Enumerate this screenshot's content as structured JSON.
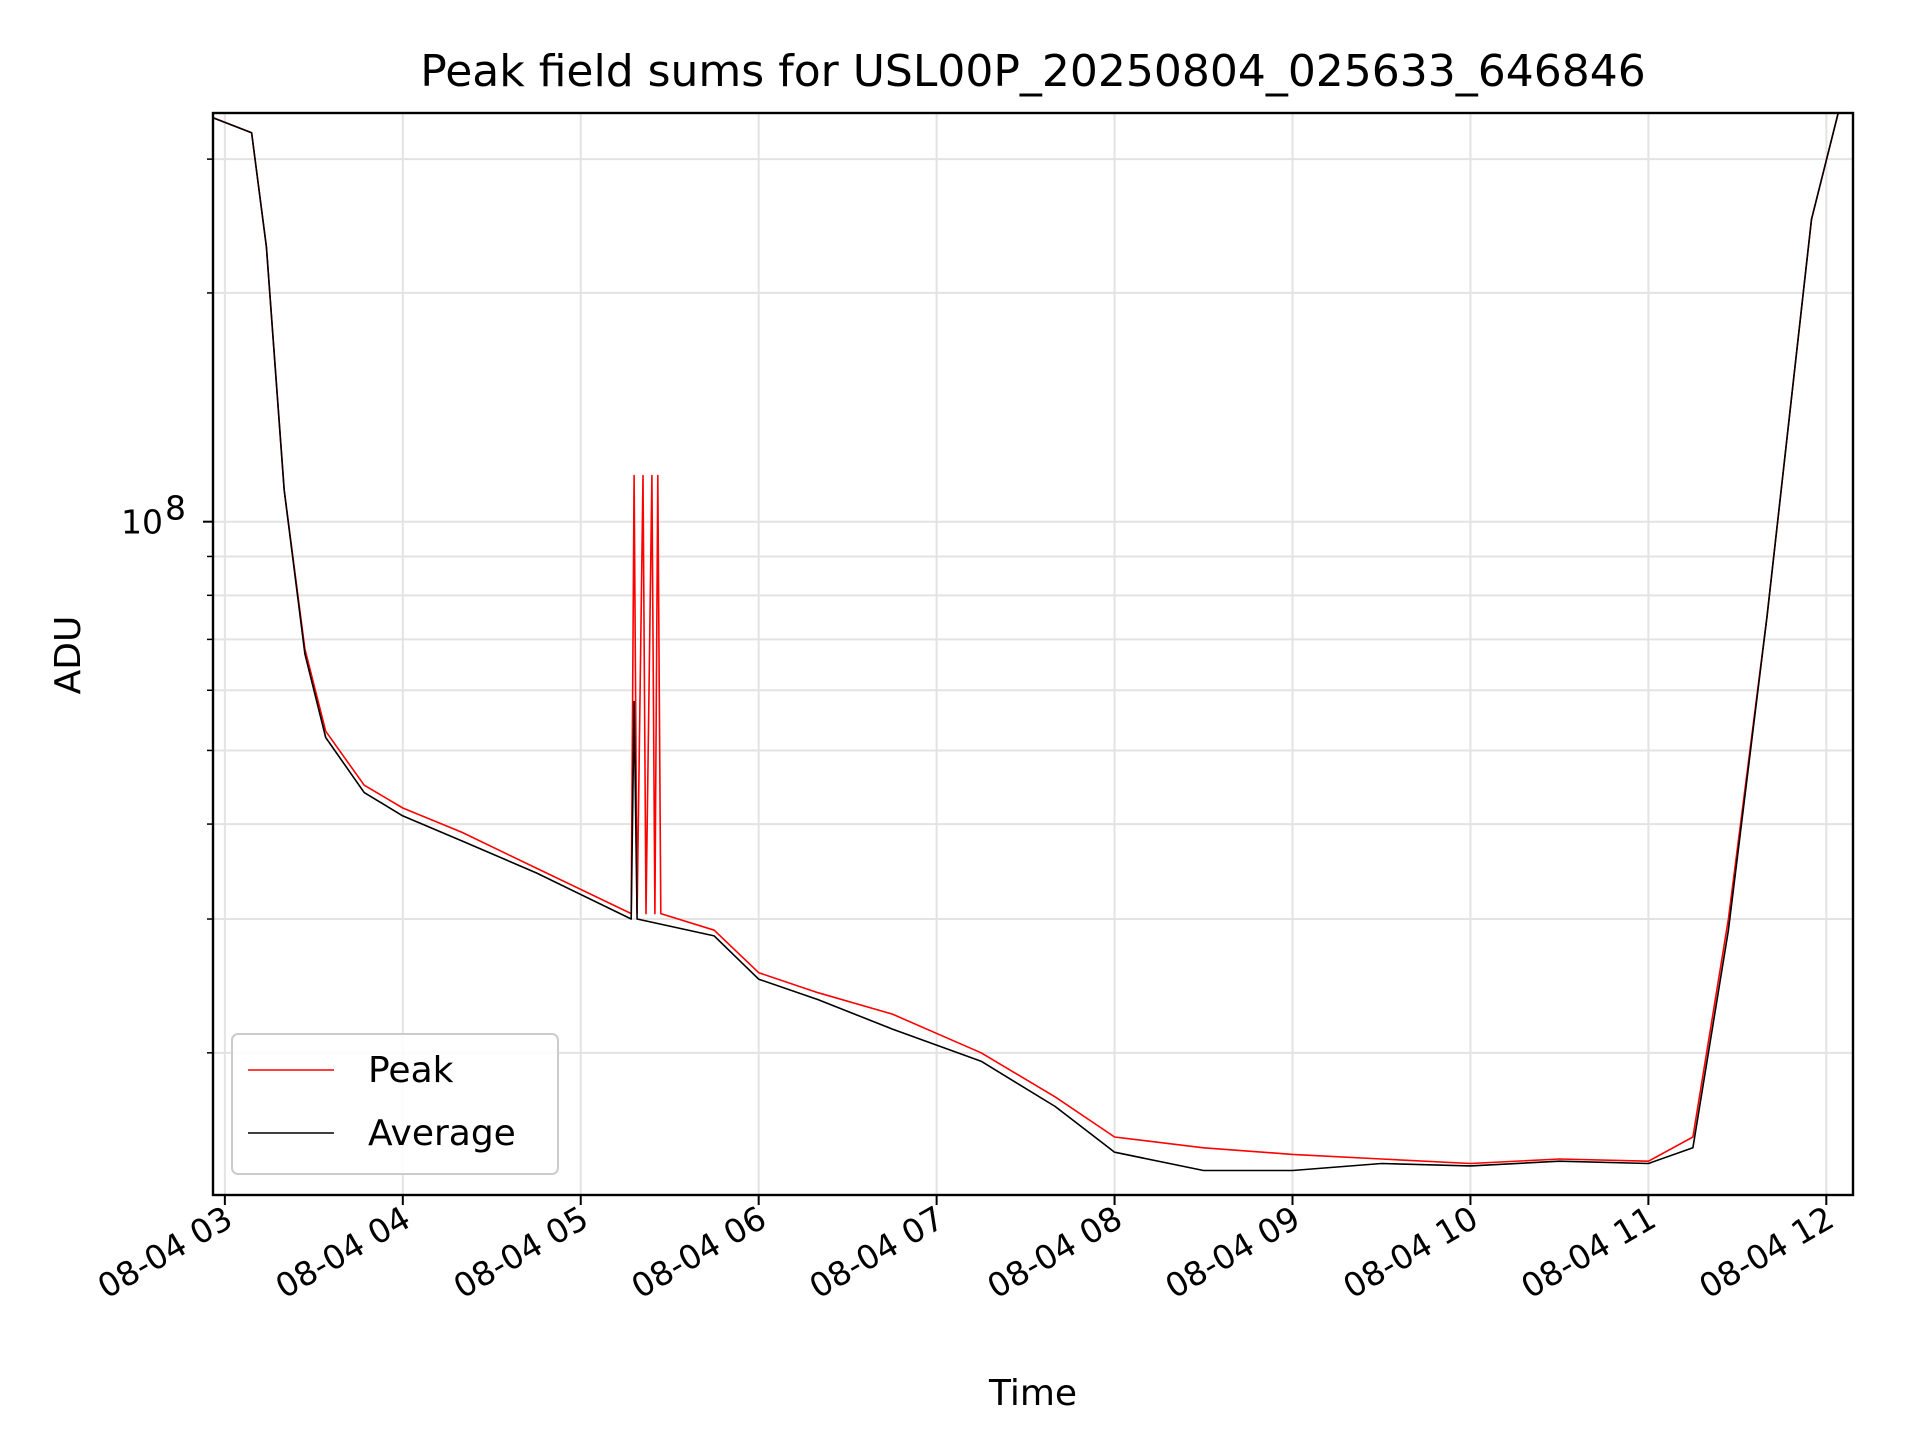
{
  "chart_data": {
    "type": "line",
    "title": "Peak field sums for USL00P_20250804_025633_646846",
    "xlabel": "Time",
    "ylabel": "ADU",
    "y_scale": "log",
    "y_major_tick": {
      "value": 100000000,
      "base": "10",
      "exponent": "8"
    },
    "ylim": [
      13000000,
      345000000
    ],
    "xlim": [
      "2025-08-04 02:56",
      "2025-08-04 12:09"
    ],
    "x_ticks": [
      {
        "t": "2025-08-04 03:00",
        "label": "08-04 03"
      },
      {
        "t": "2025-08-04 04:00",
        "label": "08-04 04"
      },
      {
        "t": "2025-08-04 05:00",
        "label": "08-04 05"
      },
      {
        "t": "2025-08-04 06:00",
        "label": "08-04 06"
      },
      {
        "t": "2025-08-04 07:00",
        "label": "08-04 07"
      },
      {
        "t": "2025-08-04 08:00",
        "label": "08-04 08"
      },
      {
        "t": "2025-08-04 09:00",
        "label": "08-04 09"
      },
      {
        "t": "2025-08-04 10:00",
        "label": "08-04 10"
      },
      {
        "t": "2025-08-04 11:00",
        "label": "08-04 11"
      },
      {
        "t": "2025-08-04 12:00",
        "label": "08-04 12"
      }
    ],
    "grid": true,
    "legend_position": "lower-left",
    "series": [
      {
        "name": "Peak",
        "color": "#ff0000",
        "points": [
          [
            "2025-08-04 02:56",
            340000000
          ],
          [
            "2025-08-04 03:09",
            325000000
          ],
          [
            "2025-08-04 03:14",
            230000000
          ],
          [
            "2025-08-04 03:20",
            110000000
          ],
          [
            "2025-08-04 03:27",
            68000000
          ],
          [
            "2025-08-04 03:34",
            53000000
          ],
          [
            "2025-08-04 03:47",
            45000000
          ],
          [
            "2025-08-04 04:00",
            42000000
          ],
          [
            "2025-08-04 04:20",
            39000000
          ],
          [
            "2025-08-04 04:45",
            35000000
          ],
          [
            "2025-08-04 05:17",
            30500000
          ],
          [
            "2025-08-04 05:18",
            115000000
          ],
          [
            "2025-08-04 05:19",
            30500000
          ],
          [
            "2025-08-04 05:21",
            115000000
          ],
          [
            "2025-08-04 05:22",
            30500000
          ],
          [
            "2025-08-04 05:24",
            115000000
          ],
          [
            "2025-08-04 05:25",
            30500000
          ],
          [
            "2025-08-04 05:26",
            115000000
          ],
          [
            "2025-08-04 05:27",
            30500000
          ],
          [
            "2025-08-04 05:45",
            29000000
          ],
          [
            "2025-08-04 06:00",
            25500000
          ],
          [
            "2025-08-04 06:20",
            24000000
          ],
          [
            "2025-08-04 06:45",
            22500000
          ],
          [
            "2025-08-04 07:15",
            20000000
          ],
          [
            "2025-08-04 07:40",
            17500000
          ],
          [
            "2025-08-04 08:00",
            15500000
          ],
          [
            "2025-08-04 08:30",
            15000000
          ],
          [
            "2025-08-04 09:00",
            14700000
          ],
          [
            "2025-08-04 09:30",
            14500000
          ],
          [
            "2025-08-04 10:00",
            14300000
          ],
          [
            "2025-08-04 10:30",
            14500000
          ],
          [
            "2025-08-04 11:00",
            14400000
          ],
          [
            "2025-08-04 11:15",
            15500000
          ],
          [
            "2025-08-04 11:27",
            30000000
          ],
          [
            "2025-08-04 11:40",
            75000000
          ],
          [
            "2025-08-04 11:55",
            250000000
          ],
          [
            "2025-08-04 12:04",
            345000000
          ]
        ]
      },
      {
        "name": "Average",
        "color": "#000000",
        "points": [
          [
            "2025-08-04 02:56",
            340000000
          ],
          [
            "2025-08-04 03:09",
            325000000
          ],
          [
            "2025-08-04 03:14",
            230000000
          ],
          [
            "2025-08-04 03:20",
            110000000
          ],
          [
            "2025-08-04 03:27",
            67000000
          ],
          [
            "2025-08-04 03:34",
            52000000
          ],
          [
            "2025-08-04 03:47",
            44000000
          ],
          [
            "2025-08-04 04:00",
            41000000
          ],
          [
            "2025-08-04 04:20",
            38000000
          ],
          [
            "2025-08-04 04:45",
            34500000
          ],
          [
            "2025-08-04 05:17",
            30000000
          ],
          [
            "2025-08-04 05:18",
            58000000
          ],
          [
            "2025-08-04 05:19",
            30000000
          ],
          [
            "2025-08-04 05:45",
            28500000
          ],
          [
            "2025-08-04 06:00",
            25000000
          ],
          [
            "2025-08-04 06:20",
            23500000
          ],
          [
            "2025-08-04 06:45",
            21500000
          ],
          [
            "2025-08-04 07:15",
            19500000
          ],
          [
            "2025-08-04 07:40",
            17000000
          ],
          [
            "2025-08-04 08:00",
            14800000
          ],
          [
            "2025-08-04 08:30",
            14000000
          ],
          [
            "2025-08-04 09:00",
            14000000
          ],
          [
            "2025-08-04 09:30",
            14300000
          ],
          [
            "2025-08-04 10:00",
            14200000
          ],
          [
            "2025-08-04 10:30",
            14400000
          ],
          [
            "2025-08-04 11:00",
            14300000
          ],
          [
            "2025-08-04 11:15",
            15000000
          ],
          [
            "2025-08-04 11:27",
            29000000
          ],
          [
            "2025-08-04 11:40",
            75000000
          ],
          [
            "2025-08-04 11:55",
            250000000
          ],
          [
            "2025-08-04 12:04",
            345000000
          ]
        ]
      }
    ]
  }
}
